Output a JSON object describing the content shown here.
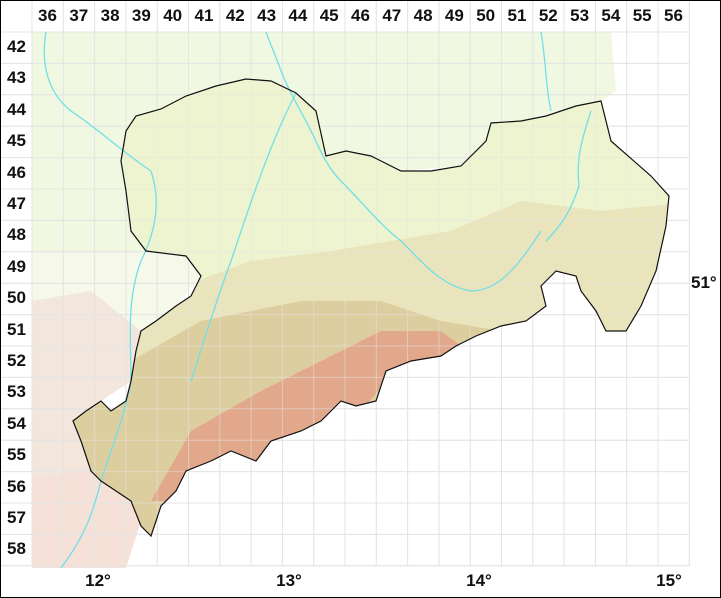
{
  "grid": {
    "columns": [
      "36",
      "37",
      "38",
      "39",
      "40",
      "41",
      "42",
      "43",
      "44",
      "45",
      "46",
      "47",
      "48",
      "49",
      "50",
      "51",
      "52",
      "53",
      "54",
      "55",
      "56"
    ],
    "rows": [
      "42",
      "43",
      "44",
      "45",
      "46",
      "47",
      "48",
      "49",
      "50",
      "51",
      "52",
      "53",
      "54",
      "55",
      "56",
      "57",
      "58"
    ]
  },
  "longitude_labels": [
    "12°",
    "13°",
    "14°",
    "15°"
  ],
  "latitude_labels": [
    "51°"
  ],
  "colors": {
    "lowland": "#eef4cf",
    "hills": "#e6dcb0",
    "uplands": "#d9c49a",
    "mountains": "#e0a088",
    "neighbor": "#f4f9e6",
    "river": "#6fe0e8",
    "border": "#111111",
    "grid": "#e4e4e4"
  }
}
